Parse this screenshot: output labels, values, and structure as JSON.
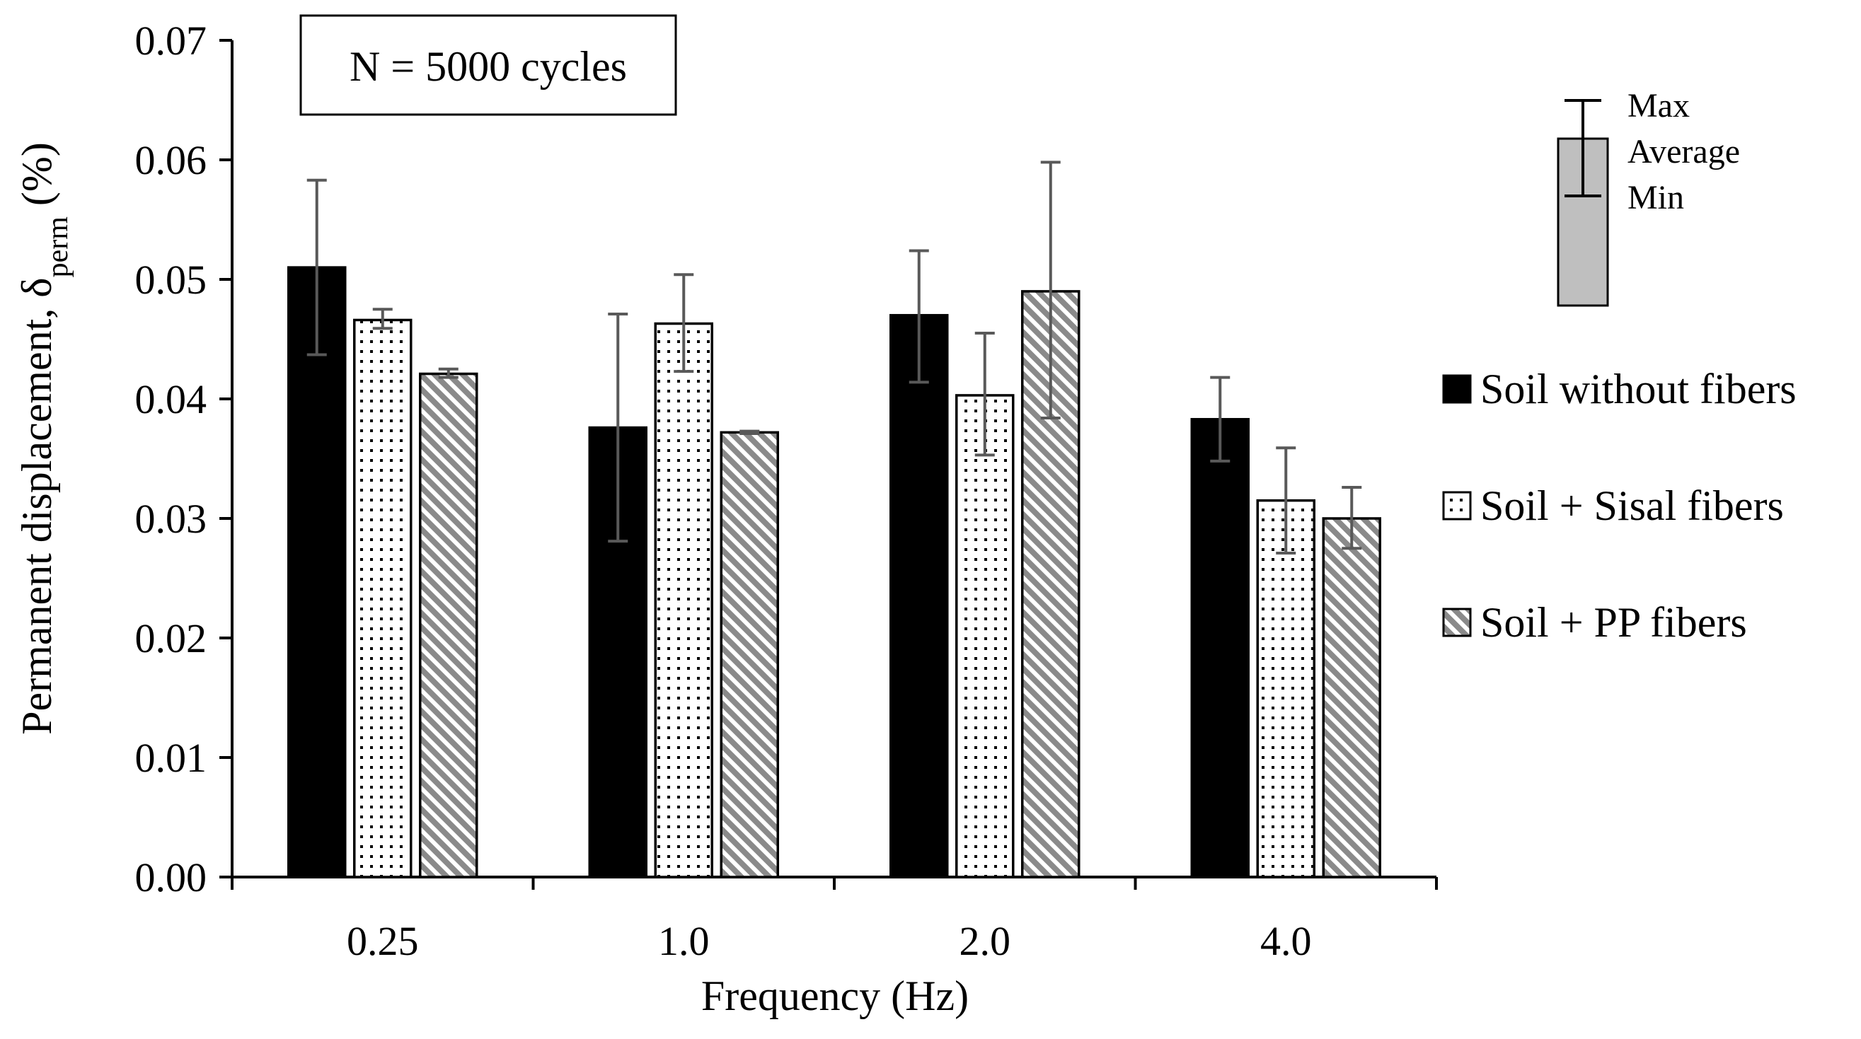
{
  "chart_data": {
    "type": "bar",
    "categories": [
      "0.25",
      "1.0",
      "2.0",
      "4.0"
    ],
    "xlabel": "Frequency (Hz)",
    "ylabel_main": "Permanent displacement, δ",
    "ylabel_sub": "perm",
    "ylabel_unit": " (%)",
    "ylim": [
      0,
      0.07
    ],
    "yticks": [
      "0.00",
      "0.01",
      "0.02",
      "0.03",
      "0.04",
      "0.05",
      "0.06",
      "0.07"
    ],
    "annotation": "N = 5000 cycles",
    "legend_position": "right",
    "series": [
      {
        "name": "Soil without fibers",
        "pattern": "solid-black",
        "values": [
          0.051,
          0.0376,
          0.047,
          0.0383
        ],
        "max": [
          0.0583,
          0.0471,
          0.0524,
          0.0418
        ],
        "min": [
          0.0437,
          0.0281,
          0.0414,
          0.0348
        ]
      },
      {
        "name": "Soil + Sisal fibers",
        "pattern": "dotted-white",
        "values": [
          0.0466,
          0.0463,
          0.0403,
          0.0315
        ],
        "max": [
          0.0475,
          0.0504,
          0.0455,
          0.0359
        ],
        "min": [
          0.0459,
          0.0423,
          0.0353,
          0.0271
        ]
      },
      {
        "name": "Soil + PP fibers",
        "pattern": "hatched-gray",
        "values": [
          0.0421,
          0.0372,
          0.049,
          0.03
        ],
        "max": [
          0.0425,
          0.0373,
          0.0598,
          0.0326
        ],
        "min": [
          0.0418,
          0.0371,
          0.0384,
          0.0275
        ]
      }
    ],
    "error_bar_key": {
      "max_label": "Max",
      "average_label": "Average",
      "min_label": "Min"
    },
    "colors": {
      "series1": "#000000",
      "series2": "#ffffff",
      "series3_stripe": "#8a8a8a",
      "error_bar": "#595959",
      "key_box": "#bfbfbf"
    }
  }
}
